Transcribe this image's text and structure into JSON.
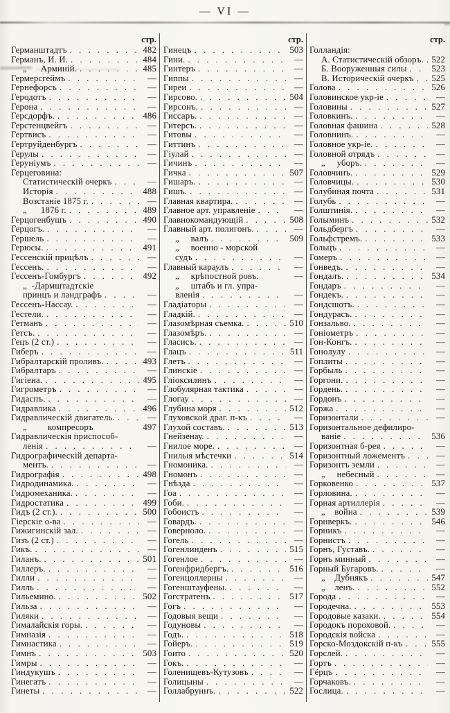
{
  "page": {
    "folio": "— VI —",
    "str_label": "стр."
  },
  "columns": [
    {
      "rows": [
        {
          "t": "Германштадтъ",
          "p": "482"
        },
        {
          "t": "Германъ, И. И.",
          "p": "484"
        },
        {
          "t": "„      Арминій.",
          "p": "485",
          "i": 1
        },
        {
          "t": "Гермерсгеймъ",
          "p": "—"
        },
        {
          "t": "Гернефорсъ",
          "p": "—"
        },
        {
          "t": "Геродотъ",
          "p": "—"
        },
        {
          "t": "Герона",
          "p": "—"
        },
        {
          "t": "Герсдорфъ.",
          "p": "486"
        },
        {
          "t": "Герстенцвейгъ",
          "p": "—"
        },
        {
          "t": "Гертвисъ",
          "p": "—"
        },
        {
          "t": "Гертруйденбургъ",
          "p": "—"
        },
        {
          "t": "Герулы",
          "p": "—"
        },
        {
          "t": "Геруніумъ",
          "p": "—"
        },
        {
          "t": "Герцеговина:",
          "nd": true
        },
        {
          "t": "Статистическій очеркъ",
          "p": "—",
          "i": 1
        },
        {
          "t": "Исторія",
          "p": "488",
          "i": 1
        },
        {
          "t": "Возстаніе 1875 г.",
          "p": "—",
          "i": 1
        },
        {
          "t": "„      1876 г.",
          "p": "489",
          "i": 1
        },
        {
          "t": "Герцогенбушъ",
          "p": "490"
        },
        {
          "t": "Герцогъ.",
          "p": "—"
        },
        {
          "t": "Гершель",
          "p": "—"
        },
        {
          "t": "Герюсы.",
          "p": "491"
        },
        {
          "t": "Гессенскій прицѣлъ",
          "p": "—"
        },
        {
          "t": "Гессенъ.",
          "p": "—"
        },
        {
          "t": "Гессенъ-Гомбургъ",
          "p": "492"
        },
        {
          "t": "„  -Дармштадтскіе",
          "nd": true,
          "i": 1
        },
        {
          "t": "принцъ и ландграфъ",
          "p": "—",
          "i": 1
        },
        {
          "t": "Гессенъ-Нассау.",
          "p": "—"
        },
        {
          "t": "Гестели.",
          "p": "—"
        },
        {
          "t": "Гетманъ",
          "p": "—"
        },
        {
          "t": "Гетсъ.",
          "p": "—"
        },
        {
          "t": "Гецъ (2 ст.)",
          "p": "—"
        },
        {
          "t": "Гиберъ",
          "p": "—"
        },
        {
          "t": "Гибралтарскій проливъ.",
          "p": "493"
        },
        {
          "t": "Гибралтаръ",
          "p": "—"
        },
        {
          "t": "Гигіена.",
          "p": "495"
        },
        {
          "t": "Гигрометръ",
          "p": "—"
        },
        {
          "t": "Гидаспъ.",
          "p": "—"
        },
        {
          "t": "Гидравлика",
          "p": "496"
        },
        {
          "t": "Гидравлическій двигатель.",
          "p": "—"
        },
        {
          "t": "„         компресоръ",
          "p": "497",
          "nd": true,
          "i": 1
        },
        {
          "t": "Гидравлическія приспособ-",
          "nd": true
        },
        {
          "t": "ленія",
          "p": "—",
          "i": 1
        },
        {
          "t": "Гидрографическій департа-",
          "nd": true
        },
        {
          "t": "ментъ.",
          "p": "—",
          "i": 1
        },
        {
          "t": "Гидрографія",
          "p": "498"
        },
        {
          "t": "Гидродинамика.",
          "p": "—"
        },
        {
          "t": "Гидромеханика.",
          "p": "—"
        },
        {
          "t": "Гидростатика",
          "p": "499"
        },
        {
          "t": "Гидъ (2 ст.).",
          "p": "500"
        },
        {
          "t": "Гіерскіе о-ва",
          "p": "—"
        },
        {
          "t": "Гижигинскій зал.",
          "p": "—"
        },
        {
          "t": "Гизъ (2 ст.)",
          "p": "—"
        },
        {
          "t": "Гикъ.",
          "p": "—"
        },
        {
          "t": "Гиланъ.",
          "p": "501"
        },
        {
          "t": "Гиллеръ.",
          "p": "—"
        },
        {
          "t": "Гилли",
          "p": "—"
        },
        {
          "t": "Гилль",
          "p": "—"
        },
        {
          "t": "Гильемино.",
          "p": "502"
        },
        {
          "t": "Гильза",
          "p": "—"
        },
        {
          "t": "Гиляки",
          "p": "—"
        },
        {
          "t": "Гималайскія горы.",
          "p": "—"
        },
        {
          "t": "Гимназія",
          "p": "—"
        },
        {
          "t": "Гимнастика",
          "p": "—"
        },
        {
          "t": "Гимнъ",
          "p": "503"
        },
        {
          "t": "Гимры",
          "p": "—"
        },
        {
          "t": "Гиндукушъ",
          "p": "—"
        },
        {
          "t": "Гинегатъ",
          "p": "—"
        },
        {
          "t": "Гинеты",
          "p": "—"
        }
      ]
    },
    {
      "rows": [
        {
          "t": "Гинецъ",
          "p": "503"
        },
        {
          "t": "Гини.",
          "p": "—"
        },
        {
          "t": "Гинтеръ",
          "p": "—"
        },
        {
          "t": "Гиппы",
          "p": "—"
        },
        {
          "t": "Гиреи",
          "p": "—"
        },
        {
          "t": "Гирсово.",
          "p": "504"
        },
        {
          "t": "Гирсонъ.",
          "p": "—"
        },
        {
          "t": "Гиссаръ.",
          "p": "—"
        },
        {
          "t": "Гитерсъ.",
          "p": "—"
        },
        {
          "t": "Гитовы",
          "p": "—"
        },
        {
          "t": "Гиттинъ",
          "p": "—"
        },
        {
          "t": "Гіулай",
          "p": "—"
        },
        {
          "t": "Гичинъ",
          "p": "—"
        },
        {
          "t": "Гичка",
          "p": "507"
        },
        {
          "t": "Гишаръ.",
          "p": "—"
        },
        {
          "t": "Гишъ.",
          "p": "—"
        },
        {
          "t": "Главная квартира.",
          "p": "—"
        },
        {
          "t": "Главное арт. управленіе",
          "p": "—"
        },
        {
          "t": "Главнокомандующій",
          "p": "508"
        },
        {
          "t": "Главный арт. полигонъ.",
          "p": "—"
        },
        {
          "t": "„     валъ",
          "p": "509",
          "i": 1
        },
        {
          "t": "„     военно - морской",
          "nd": true,
          "i": 1
        },
        {
          "t": "судъ",
          "p": "—",
          "i": 1
        },
        {
          "t": "Главный караулъ",
          "p": "—"
        },
        {
          "t": "„     крѣпостной ровъ.",
          "p": "—",
          "nd": true,
          "i": 1
        },
        {
          "t": "„     штабъ и гл. упра-",
          "nd": true,
          "i": 1
        },
        {
          "t": "вленія",
          "p": "—",
          "i": 1
        },
        {
          "t": "Гладіаторы",
          "p": "—"
        },
        {
          "t": "Гладкій.",
          "p": "—"
        },
        {
          "t": "Глазомѣрная съемка.",
          "p": "510"
        },
        {
          "t": "Глазомѣръ.",
          "p": "—"
        },
        {
          "t": "Гласисъ.",
          "p": "—"
        },
        {
          "t": "Глацъ",
          "p": "511"
        },
        {
          "t": "Глетъ",
          "p": "—"
        },
        {
          "t": "Глинскіе",
          "p": "—"
        },
        {
          "t": "Гліоксилинъ",
          "p": "—"
        },
        {
          "t": "Глобулярная тактика",
          "p": "—"
        },
        {
          "t": "Глогау",
          "p": "—"
        },
        {
          "t": "Глубина моря",
          "p": "512"
        },
        {
          "t": "Глуховской драг. п-къ",
          "p": "—"
        },
        {
          "t": "Глухой составъ.",
          "p": "513"
        },
        {
          "t": "Гнейзенау.",
          "p": "—"
        },
        {
          "t": "Гнилое море.",
          "p": "—"
        },
        {
          "t": "Гнилыя мѣстечки",
          "p": "514"
        },
        {
          "t": "Гномоника.",
          "p": "—"
        },
        {
          "t": "Гномонъ",
          "p": "—"
        },
        {
          "t": "Гнѣзда",
          "p": "—"
        },
        {
          "t": "Гоа",
          "p": "—"
        },
        {
          "t": "Гоби.",
          "p": "—"
        },
        {
          "t": "Гобоистъ",
          "p": "—"
        },
        {
          "t": "Говардъ.",
          "p": "—"
        },
        {
          "t": "Говерноло.",
          "p": "—"
        },
        {
          "t": "Гогель",
          "p": "—"
        },
        {
          "t": "Гогенлинденъ",
          "p": "515"
        },
        {
          "t": "Гогенлое",
          "p": "—"
        },
        {
          "t": "Гогенфридбергъ.",
          "p": "516"
        },
        {
          "t": "Гогенцоллерны",
          "p": "—"
        },
        {
          "t": "Гогенштауфены.",
          "p": "—"
        },
        {
          "t": "Гогстратенъ",
          "p": "517"
        },
        {
          "t": "Гогъ",
          "p": "—"
        },
        {
          "t": "Годовыя вещи",
          "p": "—"
        },
        {
          "t": "Годуновы",
          "p": "—"
        },
        {
          "t": "Годъ.",
          "p": "518"
        },
        {
          "t": "Гойеръ.",
          "p": "519"
        },
        {
          "t": "Гоито",
          "p": "520"
        },
        {
          "t": "Гокъ.",
          "p": "—"
        },
        {
          "t": "Голенищевъ-Кутузовъ",
          "p": "—"
        },
        {
          "t": "Голицыны",
          "p": "—"
        },
        {
          "t": "Голлабруннъ.",
          "p": "522"
        }
      ]
    },
    {
      "rows": [
        {
          "t": "Голландія:",
          "nd": true
        },
        {
          "t": "А. Статистическій обзоръ.",
          "p": "522",
          "i": 1
        },
        {
          "t": "Б. Вооруженныя силы",
          "p": "523",
          "i": 1
        },
        {
          "t": "В. Историческій очеркъ",
          "p": "525",
          "i": 1
        },
        {
          "t": "Голова",
          "p": "526"
        },
        {
          "t": "Головинское укр-іе",
          "p": "—"
        },
        {
          "t": "Головины",
          "p": "527"
        },
        {
          "t": "Головкинъ.",
          "p": "—"
        },
        {
          "t": "Головная фашина",
          "p": "528"
        },
        {
          "t": "Головнинъ.",
          "p": "—"
        },
        {
          "t": "Головное укр-іе.",
          "p": "—"
        },
        {
          "t": "Головной отрядъ",
          "p": "—"
        },
        {
          "t": "„     уборъ.",
          "p": "—",
          "i": 1
        },
        {
          "t": "Головчинъ.",
          "p": "529"
        },
        {
          "t": "Головчицы.",
          "p": "530"
        },
        {
          "t": "Голубиная почта",
          "p": "531"
        },
        {
          "t": "Голубь",
          "p": "—"
        },
        {
          "t": "Голштинія.",
          "p": "—"
        },
        {
          "t": "Голыминъ",
          "p": "532"
        },
        {
          "t": "Гольдбергъ",
          "p": "—"
        },
        {
          "t": "Гольфстремъ.",
          "p": "533"
        },
        {
          "t": "Гольцъ",
          "p": "—"
        },
        {
          "t": "Гомеръ",
          "p": "—"
        },
        {
          "t": "Гонведъ.",
          "p": "—"
        },
        {
          "t": "Гондалъ.",
          "p": "534"
        },
        {
          "t": "Гондаръ",
          "p": "—"
        },
        {
          "t": "Гондекъ.",
          "p": "—"
        },
        {
          "t": "Гондсшотъ.",
          "p": "—"
        },
        {
          "t": "Гондурасъ.",
          "p": "—"
        },
        {
          "t": "Гонзальво.",
          "p": "—"
        },
        {
          "t": "Гоніометръ",
          "p": "—"
        },
        {
          "t": "Гон-Конгъ.",
          "p": "—"
        },
        {
          "t": "Гонолулу",
          "p": "—"
        },
        {
          "t": "Гоплиты",
          "p": "—"
        },
        {
          "t": "Горбыль",
          "p": "—"
        },
        {
          "t": "Горгони.",
          "p": "—"
        },
        {
          "t": "Гордень.",
          "p": "—"
        },
        {
          "t": "Гордонъ",
          "p": "—"
        },
        {
          "t": "Горжа",
          "p": "—"
        },
        {
          "t": "Горизонтали",
          "p": "—"
        },
        {
          "t": "Горизонтальное дефилиро-",
          "nd": true
        },
        {
          "t": "ваніе",
          "p": "536",
          "i": 1
        },
        {
          "t": "Горизонтная б-рея",
          "p": "—"
        },
        {
          "t": "Горизонтный ложементъ",
          "p": "—"
        },
        {
          "t": "Горизонтъ земли",
          "p": "—"
        },
        {
          "t": "„     небесный",
          "p": "—",
          "i": 1
        },
        {
          "t": "Горковенко",
          "p": "537"
        },
        {
          "t": "Горловина.",
          "p": "—"
        },
        {
          "t": "Горная артиллерія",
          "p": "—"
        },
        {
          "t": "„    война",
          "p": "539",
          "i": 1
        },
        {
          "t": "Горнверкъ.",
          "p": "546"
        },
        {
          "t": "Горникъ",
          "p": "—"
        },
        {
          "t": "Горнистъ",
          "p": "—"
        },
        {
          "t": "Горнъ, Густавъ.",
          "p": "—"
        },
        {
          "t": "Горнъ минный",
          "p": "—"
        },
        {
          "t": "Горный Бугаровъ.",
          "p": "—"
        },
        {
          "t": "„    Дубнякъ",
          "p": "547",
          "i": 1
        },
        {
          "t": "„    ленъ.",
          "p": "552",
          "i": 1
        },
        {
          "t": "Города",
          "p": "—"
        },
        {
          "t": "Городечна.",
          "p": "553"
        },
        {
          "t": "Городовые казаки.",
          "p": "554"
        },
        {
          "t": "Городокъ пороховой.",
          "p": "—"
        },
        {
          "t": "Городскія войска",
          "p": "—"
        },
        {
          "t": "Горско-Моздокскій п-къ",
          "p": "555"
        },
        {
          "t": "Горслей.",
          "p": "—"
        },
        {
          "t": "Гортъ",
          "p": "—"
        },
        {
          "t": "Гёрцъ",
          "p": "—"
        },
        {
          "t": "Горчаковъ.",
          "p": "—"
        },
        {
          "t": "Гослица.",
          "p": "—"
        }
      ]
    }
  ]
}
